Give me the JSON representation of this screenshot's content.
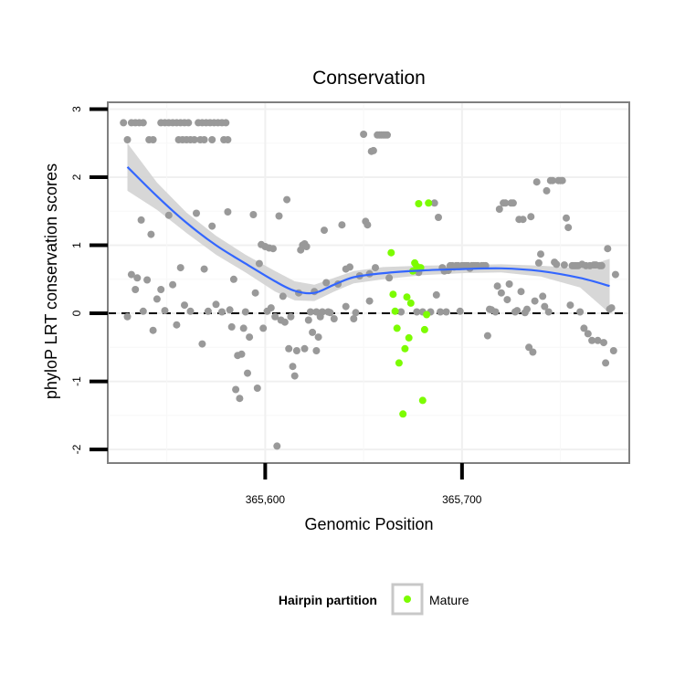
{
  "chart_data": {
    "type": "scatter",
    "title": "Conservation",
    "xlabel": "Genomic Position",
    "ylabel": "phyloP LRT conservation scores",
    "xlim": [
      365520,
      365785
    ],
    "ylim": [
      -2.2,
      3.1
    ],
    "x_ticks": [
      365600,
      365700
    ],
    "x_tick_labels": [
      "365,600",
      "365,700"
    ],
    "y_ticks": [
      -2,
      -1,
      0,
      1,
      2,
      3
    ],
    "y_tick_labels": [
      "-2",
      "-1",
      "0",
      "1",
      "2",
      "3"
    ],
    "reference_line": {
      "y": 0,
      "style": "dashed"
    },
    "grid": true,
    "legend": {
      "position": "bottom",
      "title": "Hairpin partition",
      "entries": [
        {
          "label": "Mature",
          "color": "#7cfc00"
        }
      ]
    },
    "colors": {
      "other": "#999999",
      "mature": "#7cfc00",
      "smooth_line": "#3366ff",
      "ribbon": "#d3d3d3"
    },
    "series": [
      {
        "name": "Mature",
        "points": [
          [
            365664,
            0.89
          ],
          [
            365665,
            0.28
          ],
          [
            365666,
            0.03
          ],
          [
            365667,
            -0.22
          ],
          [
            365668,
            -0.73
          ],
          [
            365670,
            -1.48
          ],
          [
            365671,
            -0.52
          ],
          [
            365672,
            0.24
          ],
          [
            365673,
            -0.36
          ],
          [
            365674,
            0.15
          ],
          [
            365675,
            0.62
          ],
          [
            365676,
            0.74
          ],
          [
            365677,
            0.69
          ],
          [
            365678,
            1.61
          ],
          [
            365679,
            0.67
          ],
          [
            365680,
            -1.28
          ],
          [
            365681,
            -0.24
          ],
          [
            365682,
            -0.02
          ],
          [
            365683,
            1.62
          ]
        ]
      },
      {
        "name": "",
        "points": [
          [
            365528,
            2.8
          ],
          [
            365530,
            2.55
          ],
          [
            365532,
            2.8
          ],
          [
            365534,
            2.8
          ],
          [
            365536,
            2.8
          ],
          [
            365538,
            2.8
          ],
          [
            365541,
            2.55
          ],
          [
            365543,
            2.55
          ],
          [
            365547,
            2.8
          ],
          [
            365549,
            2.8
          ],
          [
            365551,
            2.8
          ],
          [
            365553,
            2.8
          ],
          [
            365555,
            2.8
          ],
          [
            365557,
            2.8
          ],
          [
            365559,
            2.8
          ],
          [
            365561,
            2.8
          ],
          [
            365556,
            2.55
          ],
          [
            365558,
            2.55
          ],
          [
            365560,
            2.55
          ],
          [
            365562,
            2.55
          ],
          [
            365564,
            2.55
          ],
          [
            365566,
            2.8
          ],
          [
            365568,
            2.8
          ],
          [
            365570,
            2.8
          ],
          [
            365572,
            2.8
          ],
          [
            365574,
            2.8
          ],
          [
            365576,
            2.8
          ],
          [
            365578,
            2.8
          ],
          [
            365567,
            2.55
          ],
          [
            365569,
            2.55
          ],
          [
            365573,
            2.55
          ],
          [
            365579,
            2.55
          ],
          [
            365581,
            2.55
          ],
          [
            365580,
            2.8
          ],
          [
            365530,
            -0.05
          ],
          [
            365532,
            0.57
          ],
          [
            365534,
            0.35
          ],
          [
            365535,
            0.52
          ],
          [
            365537,
            1.37
          ],
          [
            365538,
            0.03
          ],
          [
            365540,
            0.49
          ],
          [
            365542,
            1.16
          ],
          [
            365543,
            -0.25
          ],
          [
            365545,
            0.21
          ],
          [
            365547,
            0.35
          ],
          [
            365549,
            0.04
          ],
          [
            365551,
            1.44
          ],
          [
            365553,
            0.42
          ],
          [
            365555,
            -0.17
          ],
          [
            365557,
            0.67
          ],
          [
            365559,
            0.12
          ],
          [
            365562,
            0.03
          ],
          [
            365565,
            1.47
          ],
          [
            365568,
            -0.45
          ],
          [
            365569,
            0.65
          ],
          [
            365571,
            0.03
          ],
          [
            365573,
            1.28
          ],
          [
            365575,
            0.13
          ],
          [
            365578,
            0.02
          ],
          [
            365581,
            1.49
          ],
          [
            365582,
            0.05
          ],
          [
            365583,
            -0.2
          ],
          [
            365584,
            0.5
          ],
          [
            365585,
            -1.12
          ],
          [
            365586,
            -0.62
          ],
          [
            365587,
            -1.25
          ],
          [
            365588,
            -0.6
          ],
          [
            365589,
            -0.22
          ],
          [
            365590,
            0.02
          ],
          [
            365591,
            -0.88
          ],
          [
            365592,
            -0.35
          ],
          [
            365594,
            1.45
          ],
          [
            365595,
            0.3
          ],
          [
            365596,
            -1.1
          ],
          [
            365597,
            0.73
          ],
          [
            365598,
            1.01
          ],
          [
            365599,
            -0.22
          ],
          [
            365600,
            0.98
          ],
          [
            365601,
            0.03
          ],
          [
            365602,
            0.96
          ],
          [
            365603,
            0.08
          ],
          [
            365604,
            0.95
          ],
          [
            365605,
            -0.05
          ],
          [
            365606,
            -1.95
          ],
          [
            365607,
            1.43
          ],
          [
            365608,
            -0.1
          ],
          [
            365609,
            0.25
          ],
          [
            365610,
            -0.13
          ],
          [
            365611,
            1.67
          ],
          [
            365612,
            -0.52
          ],
          [
            365613,
            -0.05
          ],
          [
            365614,
            -0.78
          ],
          [
            365615,
            -0.92
          ],
          [
            365616,
            -0.55
          ],
          [
            365617,
            0.3
          ],
          [
            365618,
            0.93
          ],
          [
            365619,
            1.0
          ],
          [
            365620,
            1.02
          ],
          [
            365621,
            0.98
          ],
          [
            365622,
            -0.1
          ],
          [
            365623,
            0.02
          ],
          [
            365624,
            -0.28
          ],
          [
            365625,
            0.32
          ],
          [
            365626,
            0.02
          ],
          [
            365627,
            -0.35
          ],
          [
            365628,
            -0.05
          ],
          [
            365629,
            0.02
          ],
          [
            365630,
            1.22
          ],
          [
            365631,
            0.45
          ],
          [
            365632,
            0.02
          ],
          [
            365633,
            0.01
          ],
          [
            365635,
            -0.08
          ],
          [
            365637,
            0.43
          ],
          [
            365639,
            1.3
          ],
          [
            365641,
            0.65
          ],
          [
            365643,
            0.68
          ],
          [
            365645,
            -0.08
          ],
          [
            365646,
            0.01
          ],
          [
            365648,
            0.55
          ],
          [
            365650,
            2.63
          ],
          [
            365651,
            1.35
          ],
          [
            365652,
            1.3
          ],
          [
            365653,
            0.18
          ],
          [
            365654,
            2.38
          ],
          [
            365655,
            2.39
          ],
          [
            365656,
            0.67
          ],
          [
            365657,
            2.62
          ],
          [
            365658,
            2.62
          ],
          [
            365659,
            2.62
          ],
          [
            365660,
            2.62
          ],
          [
            365661,
            2.62
          ],
          [
            365662,
            2.62
          ],
          [
            365663,
            0.52
          ],
          [
            365669,
            0.02
          ],
          [
            365677,
            0.02
          ],
          [
            365678,
            0.6
          ],
          [
            365680,
            0.02
          ],
          [
            365684,
            0.02
          ],
          [
            365686,
            1.62
          ],
          [
            365687,
            0.27
          ],
          [
            365688,
            1.41
          ],
          [
            365689,
            0.02
          ],
          [
            365690,
            0.67
          ],
          [
            365691,
            0.62
          ],
          [
            365692,
            0.02
          ],
          [
            365693,
            0.63
          ],
          [
            365694,
            0.7
          ],
          [
            365695,
            0.7
          ],
          [
            365696,
            0.68
          ],
          [
            365697,
            0.7
          ],
          [
            365698,
            0.7
          ],
          [
            365699,
            0.03
          ],
          [
            365700,
            0.7
          ],
          [
            365701,
            0.7
          ],
          [
            365702,
            0.7
          ],
          [
            365703,
            0.7
          ],
          [
            365704,
            0.66
          ],
          [
            365705,
            0.7
          ],
          [
            365706,
            0.7
          ],
          [
            365707,
            0.7
          ],
          [
            365708,
            0.7
          ],
          [
            365710,
            0.7
          ],
          [
            365711,
            0.7
          ],
          [
            365712,
            0.7
          ],
          [
            365713,
            -0.33
          ],
          [
            365714,
            0.06
          ],
          [
            365715,
            0.05
          ],
          [
            365717,
            0.02
          ],
          [
            365718,
            0.4
          ],
          [
            365719,
            1.53
          ],
          [
            365720,
            0.3
          ],
          [
            365721,
            1.62
          ],
          [
            365722,
            1.62
          ],
          [
            365723,
            0.2
          ],
          [
            365724,
            0.43
          ],
          [
            365725,
            1.62
          ],
          [
            365726,
            1.62
          ],
          [
            365727,
            0.02
          ],
          [
            365728,
            0.04
          ],
          [
            365729,
            1.38
          ],
          [
            365730,
            0.32
          ],
          [
            365731,
            1.38
          ],
          [
            365732,
            0.01
          ],
          [
            365733,
            0.06
          ],
          [
            365734,
            -0.5
          ],
          [
            365735,
            1.42
          ],
          [
            365736,
            -0.57
          ],
          [
            365737,
            0.18
          ],
          [
            365738,
            1.93
          ],
          [
            365739,
            0.74
          ],
          [
            365740,
            0.87
          ],
          [
            365741,
            0.25
          ],
          [
            365742,
            0.1
          ],
          [
            365743,
            1.8
          ],
          [
            365744,
            0.02
          ],
          [
            365745,
            1.95
          ],
          [
            365746,
            1.95
          ],
          [
            365747,
            0.75
          ],
          [
            365748,
            0.72
          ],
          [
            365749,
            1.95
          ],
          [
            365750,
            1.95
          ],
          [
            365751,
            1.95
          ],
          [
            365752,
            0.71
          ],
          [
            365753,
            1.4
          ],
          [
            365754,
            1.26
          ],
          [
            365755,
            0.12
          ],
          [
            365756,
            0.7
          ],
          [
            365757,
            0.7
          ],
          [
            365758,
            0.7
          ],
          [
            365759,
            0.7
          ],
          [
            365760,
            0.02
          ],
          [
            365761,
            0.72
          ],
          [
            365762,
            -0.22
          ],
          [
            365763,
            0.7
          ],
          [
            365764,
            -0.3
          ],
          [
            365765,
            0.7
          ],
          [
            365766,
            -0.4
          ],
          [
            365767,
            0.71
          ],
          [
            365768,
            0.71
          ],
          [
            365769,
            -0.4
          ],
          [
            365770,
            0.7
          ],
          [
            365771,
            0.7
          ],
          [
            365772,
            -0.43
          ],
          [
            365773,
            -0.73
          ],
          [
            365774,
            0.95
          ],
          [
            365775,
            0.06
          ],
          [
            365776,
            0.08
          ],
          [
            365777,
            -0.55
          ],
          [
            365778,
            0.57
          ],
          [
            365620,
            -0.52
          ],
          [
            365626,
            -0.55
          ],
          [
            365653,
            0.58
          ],
          [
            365641,
            0.1
          ]
        ]
      }
    ],
    "smooth": {
      "x": [
        365530,
        365545,
        365560,
        365575,
        365590,
        365605,
        365615,
        365625,
        365635,
        365645,
        365660,
        365680,
        365700,
        365720,
        365740,
        365760,
        365775
      ],
      "y": [
        2.15,
        1.72,
        1.33,
        1.0,
        0.73,
        0.47,
        0.33,
        0.3,
        0.42,
        0.53,
        0.59,
        0.63,
        0.65,
        0.66,
        0.62,
        0.52,
        0.4
      ],
      "lower": [
        1.8,
        1.52,
        1.18,
        0.86,
        0.6,
        0.32,
        0.19,
        0.18,
        0.32,
        0.44,
        0.5,
        0.56,
        0.59,
        0.6,
        0.54,
        0.38,
        0.0
      ],
      "upper": [
        2.5,
        1.92,
        1.48,
        1.14,
        0.86,
        0.62,
        0.47,
        0.42,
        0.52,
        0.62,
        0.68,
        0.7,
        0.71,
        0.72,
        0.7,
        0.66,
        0.8
      ]
    }
  }
}
